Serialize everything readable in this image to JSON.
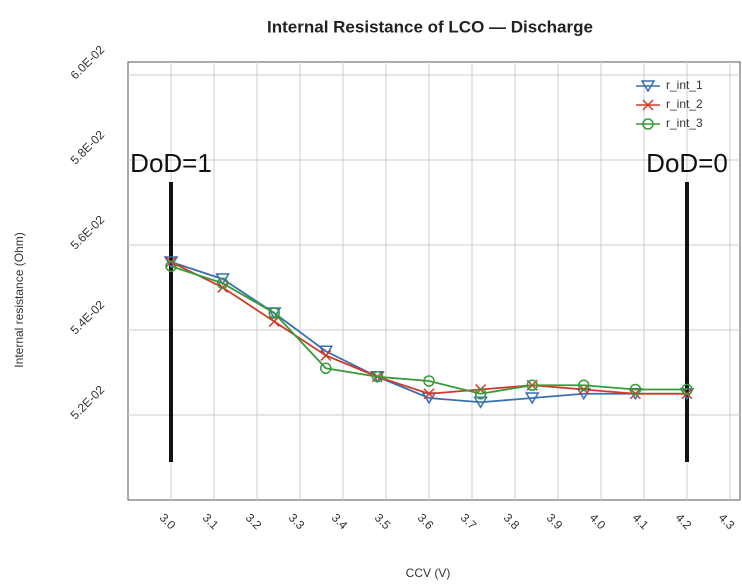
{
  "chart_data": {
    "type": "line",
    "title": "Internal Resistance of LCO — Discharge",
    "x_label": "CCV (V)",
    "y_label": "Internal resistance (Ohm)",
    "x": [
      3.0,
      3.12,
      3.24,
      3.36,
      3.48,
      3.6,
      3.72,
      3.84,
      3.96,
      4.08,
      4.2
    ],
    "series": [
      {
        "name": "r_int_1",
        "color": "#3a6fb0",
        "marker": "triangle-down",
        "values": [
          0.0556,
          0.0552,
          0.0544,
          0.0535,
          0.0529,
          0.0524,
          0.0523,
          0.0524,
          0.0525,
          0.0525,
          0.0525
        ]
      },
      {
        "name": "r_int_2",
        "color": "#d03a2a",
        "marker": "x",
        "values": [
          0.0556,
          0.055,
          0.0542,
          0.0534,
          0.0529,
          0.0525,
          0.0526,
          0.0527,
          0.0526,
          0.0525,
          0.0525
        ]
      },
      {
        "name": "r_int_3",
        "color": "#3a9a3a",
        "marker": "circle",
        "values": [
          0.0555,
          0.0551,
          0.0544,
          0.0531,
          0.0529,
          0.0528,
          0.0525,
          0.0527,
          0.0527,
          0.0526,
          0.0526
        ]
      }
    ],
    "annotations": [
      {
        "text": "DoD=1",
        "x": 3.0
      },
      {
        "text": "DoD=0",
        "x": 4.2
      }
    ],
    "xlim": [
      2.9,
      4.3
    ],
    "xticks": [
      {
        "value": 3,
        "label": "3.0"
      },
      3.1,
      3.2,
      3.3,
      3.4,
      3.5,
      3.6,
      3.7,
      3.8,
      3.9,
      {
        "value": 4,
        "label": "4.0"
      },
      4.1,
      4.2,
      4.3
    ],
    "ylim": [
      0.05,
      0.06
    ],
    "yticks": [
      {
        "value": 0.052,
        "label": "5.2E-02"
      },
      {
        "value": 0.054,
        "label": "5.4E-02"
      },
      {
        "value": 0.056,
        "label": "5.6E-02"
      },
      {
        "value": 0.058,
        "label": "5.8E-02"
      },
      {
        "value": 0.06,
        "label": "6.0E-02"
      }
    ],
    "grid": true,
    "legend": "upper right"
  }
}
